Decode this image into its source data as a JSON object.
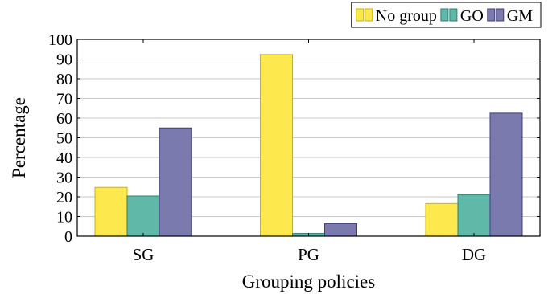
{
  "chart_data": {
    "type": "bar",
    "title": "",
    "xlabel": "Grouping policies",
    "ylabel": "Percentage",
    "categories": [
      "SG",
      "PG",
      "DG"
    ],
    "ylim": [
      0,
      100
    ],
    "yticks": [
      "0",
      "10",
      "20",
      "30",
      "40",
      "50",
      "60",
      "70",
      "80",
      "90",
      "100"
    ],
    "grid": "horizontal",
    "legend_position": "top-right",
    "series": [
      {
        "name": "No group",
        "color": "#fde84d",
        "stroke": "#c9b400",
        "values": [
          24.8,
          92.3,
          16.6
        ]
      },
      {
        "name": "GO",
        "color": "#5fb8a8",
        "stroke": "#2e8070",
        "values": [
          20.4,
          1.4,
          21.1
        ]
      },
      {
        "name": "GM",
        "color": "#7b7aae",
        "stroke": "#3f3d7a",
        "values": [
          55.0,
          6.4,
          62.5
        ]
      }
    ]
  }
}
